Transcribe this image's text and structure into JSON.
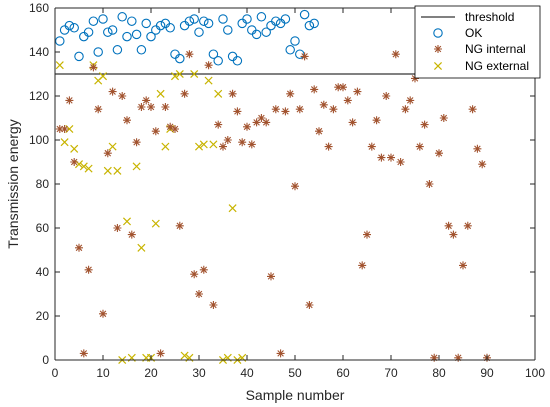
{
  "chart_data": {
    "type": "scatter",
    "title": "",
    "xlabel": "Sample number",
    "ylabel": "Transmission energy",
    "xlim": [
      0,
      100
    ],
    "ylim": [
      0,
      160
    ],
    "xticks": [
      "0",
      "10",
      "20",
      "30",
      "40",
      "50",
      "60",
      "70",
      "80",
      "90",
      "100"
    ],
    "yticks": [
      "0",
      "20",
      "40",
      "60",
      "80",
      "100",
      "120",
      "140",
      "160"
    ],
    "grid": false,
    "legend_position": "top-right",
    "threshold": {
      "name": "threshold",
      "value": 130,
      "color": "#000000"
    },
    "series": [
      {
        "name": "OK",
        "marker": "circle",
        "color": "#0072BD",
        "points": [
          [
            1,
            145
          ],
          [
            2,
            150
          ],
          [
            3,
            152
          ],
          [
            4,
            151
          ],
          [
            5,
            138
          ],
          [
            6,
            147
          ],
          [
            7,
            149
          ],
          [
            8,
            154
          ],
          [
            9,
            140
          ],
          [
            10,
            155
          ],
          [
            11,
            149
          ],
          [
            12,
            150
          ],
          [
            13,
            141
          ],
          [
            14,
            156
          ],
          [
            15,
            147
          ],
          [
            16,
            154
          ],
          [
            17,
            148
          ],
          [
            18,
            141
          ],
          [
            19,
            153
          ],
          [
            20,
            147
          ],
          [
            21,
            150
          ],
          [
            22,
            152
          ],
          [
            23,
            153
          ],
          [
            24,
            151
          ],
          [
            25,
            139
          ],
          [
            26,
            137
          ],
          [
            27,
            152
          ],
          [
            28,
            154
          ],
          [
            29,
            155
          ],
          [
            30,
            149
          ],
          [
            31,
            154
          ],
          [
            32,
            153
          ],
          [
            33,
            139
          ],
          [
            34,
            136
          ],
          [
            35,
            155
          ],
          [
            36,
            150
          ],
          [
            37,
            138
          ],
          [
            38,
            136
          ],
          [
            39,
            153
          ],
          [
            40,
            155
          ],
          [
            41,
            150
          ],
          [
            42,
            148
          ],
          [
            43,
            156
          ],
          [
            44,
            149
          ],
          [
            45,
            152
          ],
          [
            46,
            154
          ],
          [
            47,
            153
          ],
          [
            48,
            155
          ],
          [
            49,
            141
          ],
          [
            50,
            145
          ],
          [
            51,
            139
          ],
          [
            52,
            157
          ],
          [
            53,
            152
          ],
          [
            54,
            153
          ]
        ]
      },
      {
        "name": "NG internal",
        "marker": "star",
        "color": "#A2532F",
        "points": [
          [
            1,
            105
          ],
          [
            2,
            105
          ],
          [
            3,
            118
          ],
          [
            4,
            90
          ],
          [
            5,
            51
          ],
          [
            6,
            3
          ],
          [
            7,
            41
          ],
          [
            8,
            133
          ],
          [
            9,
            114
          ],
          [
            10,
            21
          ],
          [
            11,
            94
          ],
          [
            12,
            122
          ],
          [
            13,
            60
          ],
          [
            14,
            120
          ],
          [
            15,
            109
          ],
          [
            16,
            57
          ],
          [
            17,
            99
          ],
          [
            18,
            115
          ],
          [
            19,
            118
          ],
          [
            20,
            115
          ],
          [
            21,
            104
          ],
          [
            22,
            3
          ],
          [
            23,
            115
          ],
          [
            24,
            106
          ],
          [
            25,
            105
          ],
          [
            26,
            61
          ],
          [
            27,
            121
          ],
          [
            28,
            139
          ],
          [
            29,
            39
          ],
          [
            30,
            30
          ],
          [
            31,
            41
          ],
          [
            32,
            134
          ],
          [
            33,
            25
          ],
          [
            34,
            107
          ],
          [
            35,
            97
          ],
          [
            36,
            100
          ],
          [
            37,
            121
          ],
          [
            38,
            113
          ],
          [
            39,
            99
          ],
          [
            40,
            106
          ],
          [
            41,
            98
          ],
          [
            42,
            108
          ],
          [
            43,
            110
          ],
          [
            44,
            108
          ],
          [
            45,
            38
          ],
          [
            46,
            114
          ],
          [
            47,
            3
          ],
          [
            48,
            113
          ],
          [
            49,
            121
          ],
          [
            50,
            79
          ],
          [
            51,
            114
          ],
          [
            52,
            138
          ],
          [
            53,
            25
          ],
          [
            54,
            123
          ],
          [
            55,
            104
          ],
          [
            56,
            116
          ],
          [
            57,
            97
          ],
          [
            58,
            114
          ],
          [
            59,
            124
          ],
          [
            60,
            124
          ],
          [
            61,
            118
          ],
          [
            62,
            108
          ],
          [
            63,
            122
          ],
          [
            64,
            43
          ],
          [
            65,
            57
          ],
          [
            66,
            97
          ],
          [
            67,
            109
          ],
          [
            68,
            92
          ],
          [
            69,
            120
          ],
          [
            70,
            92
          ],
          [
            71,
            139
          ],
          [
            72,
            90
          ],
          [
            73,
            114
          ],
          [
            74,
            118
          ],
          [
            75,
            128
          ],
          [
            76,
            97
          ],
          [
            77,
            107
          ],
          [
            78,
            80
          ],
          [
            79,
            1
          ],
          [
            80,
            94
          ],
          [
            81,
            110
          ],
          [
            82,
            61
          ],
          [
            83,
            57
          ],
          [
            84,
            1
          ],
          [
            85,
            43
          ],
          [
            86,
            61
          ],
          [
            87,
            114
          ],
          [
            88,
            96
          ],
          [
            89,
            89
          ],
          [
            90,
            1
          ]
        ]
      },
      {
        "name": "NG external",
        "marker": "x",
        "color": "#C8B400",
        "points": [
          [
            1,
            134
          ],
          [
            2,
            99
          ],
          [
            3,
            105
          ],
          [
            4,
            96
          ],
          [
            5,
            89
          ],
          [
            6,
            88
          ],
          [
            7,
            87
          ],
          [
            8,
            134
          ],
          [
            9,
            127
          ],
          [
            10,
            129
          ],
          [
            11,
            86
          ],
          [
            12,
            97
          ],
          [
            13,
            86
          ],
          [
            14,
            0
          ],
          [
            15,
            63
          ],
          [
            16,
            1
          ],
          [
            17,
            88
          ],
          [
            18,
            51
          ],
          [
            19,
            1
          ],
          [
            20,
            1
          ],
          [
            21,
            62
          ],
          [
            22,
            121
          ],
          [
            23,
            97
          ],
          [
            24,
            105
          ],
          [
            25,
            129
          ],
          [
            26,
            130
          ],
          [
            27,
            2
          ],
          [
            28,
            1
          ],
          [
            29,
            130
          ],
          [
            30,
            97
          ],
          [
            31,
            98
          ],
          [
            32,
            127
          ],
          [
            33,
            98
          ],
          [
            34,
            121
          ],
          [
            35,
            0
          ],
          [
            36,
            1
          ],
          [
            37,
            69
          ],
          [
            38,
            0
          ],
          [
            39,
            1
          ]
        ]
      }
    ]
  }
}
